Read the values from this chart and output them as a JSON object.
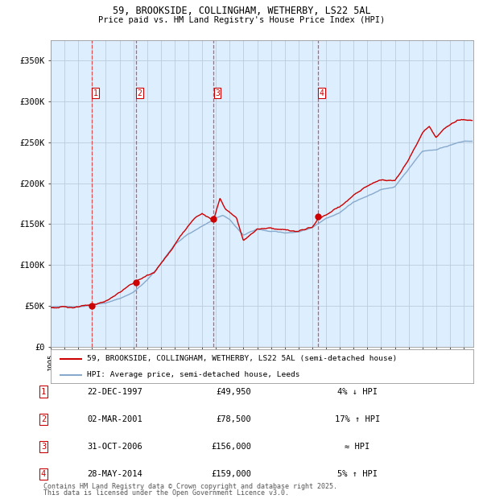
{
  "title1": "59, BROOKSIDE, COLLINGHAM, WETHERBY, LS22 5AL",
  "title2": "Price paid vs. HM Land Registry's House Price Index (HPI)",
  "ylabel_ticks": [
    "£0",
    "£50K",
    "£100K",
    "£150K",
    "£200K",
    "£250K",
    "£300K",
    "£350K"
  ],
  "ytick_values": [
    0,
    50000,
    100000,
    150000,
    200000,
    250000,
    300000,
    350000
  ],
  "ylim": [
    0,
    375000
  ],
  "xlim_start": 1995.0,
  "xlim_end": 2025.7,
  "background_color": "#ffffff",
  "chart_bg_color": "#ddeeff",
  "grid_color": "#bbccdd",
  "hpi_line_color": "#88aacc",
  "price_line_color": "#cc0000",
  "sale_marker_color": "#cc0000",
  "dashed_line_color": "#dd4444",
  "transactions": [
    {
      "label": "1",
      "date_str": "22-DEC-1997",
      "price": 49950,
      "year": 1997.97,
      "hpi_note": "4% ↓ HPI"
    },
    {
      "label": "2",
      "date_str": "02-MAR-2001",
      "price": 78500,
      "year": 2001.17,
      "hpi_note": "17% ↑ HPI"
    },
    {
      "label": "3",
      "date_str": "31-OCT-2006",
      "price": 156000,
      "year": 2006.83,
      "hpi_note": "≈ HPI"
    },
    {
      "label": "4",
      "date_str": "28-MAY-2014",
      "price": 159000,
      "year": 2014.41,
      "hpi_note": "5% ↑ HPI"
    }
  ],
  "legend_line1": "59, BROOKSIDE, COLLINGHAM, WETHERBY, LS22 5AL (semi-detached house)",
  "legend_line2": "HPI: Average price, semi-detached house, Leeds",
  "footnote1": "Contains HM Land Registry data © Crown copyright and database right 2025.",
  "footnote2": "This data is licensed under the Open Government Licence v3.0.",
  "hpi_anchors": [
    [
      1995.0,
      48000
    ],
    [
      1996.0,
      50000
    ],
    [
      1997.0,
      50000
    ],
    [
      1998.0,
      52000
    ],
    [
      1999.0,
      55000
    ],
    [
      2000.0,
      60000
    ],
    [
      2001.0,
      68000
    ],
    [
      2002.0,
      82000
    ],
    [
      2003.0,
      102000
    ],
    [
      2004.0,
      125000
    ],
    [
      2005.0,
      138000
    ],
    [
      2006.0,
      148000
    ],
    [
      2007.0,
      157000
    ],
    [
      2007.5,
      160000
    ],
    [
      2008.0,
      155000
    ],
    [
      2009.0,
      136000
    ],
    [
      2010.0,
      143000
    ],
    [
      2011.0,
      140000
    ],
    [
      2012.0,
      138000
    ],
    [
      2013.0,
      140000
    ],
    [
      2014.0,
      145000
    ],
    [
      2015.0,
      157000
    ],
    [
      2016.0,
      165000
    ],
    [
      2017.0,
      178000
    ],
    [
      2018.0,
      185000
    ],
    [
      2019.0,
      192000
    ],
    [
      2020.0,
      196000
    ],
    [
      2021.0,
      218000
    ],
    [
      2022.0,
      240000
    ],
    [
      2023.0,
      242000
    ],
    [
      2024.0,
      248000
    ],
    [
      2025.0,
      252000
    ]
  ],
  "price_anchors": [
    [
      1995.0,
      48000
    ],
    [
      1997.0,
      49000
    ],
    [
      1997.97,
      49950
    ],
    [
      1999.0,
      55000
    ],
    [
      2001.17,
      78500
    ],
    [
      2002.5,
      90000
    ],
    [
      2003.5,
      112000
    ],
    [
      2004.5,
      138000
    ],
    [
      2005.5,
      158000
    ],
    [
      2006.0,
      165000
    ],
    [
      2006.83,
      156000
    ],
    [
      2007.3,
      183000
    ],
    [
      2007.7,
      170000
    ],
    [
      2008.5,
      160000
    ],
    [
      2009.0,
      133000
    ],
    [
      2010.0,
      148000
    ],
    [
      2011.0,
      150000
    ],
    [
      2012.0,
      148000
    ],
    [
      2013.0,
      145000
    ],
    [
      2013.5,
      148000
    ],
    [
      2014.0,
      150000
    ],
    [
      2014.41,
      159000
    ],
    [
      2015.0,
      165000
    ],
    [
      2016.0,
      175000
    ],
    [
      2017.0,
      188000
    ],
    [
      2018.0,
      198000
    ],
    [
      2019.0,
      205000
    ],
    [
      2020.0,
      205000
    ],
    [
      2021.0,
      230000
    ],
    [
      2022.0,
      262000
    ],
    [
      2022.5,
      270000
    ],
    [
      2023.0,
      255000
    ],
    [
      2023.5,
      265000
    ],
    [
      2024.0,
      270000
    ],
    [
      2024.5,
      278000
    ],
    [
      2025.0,
      280000
    ]
  ]
}
